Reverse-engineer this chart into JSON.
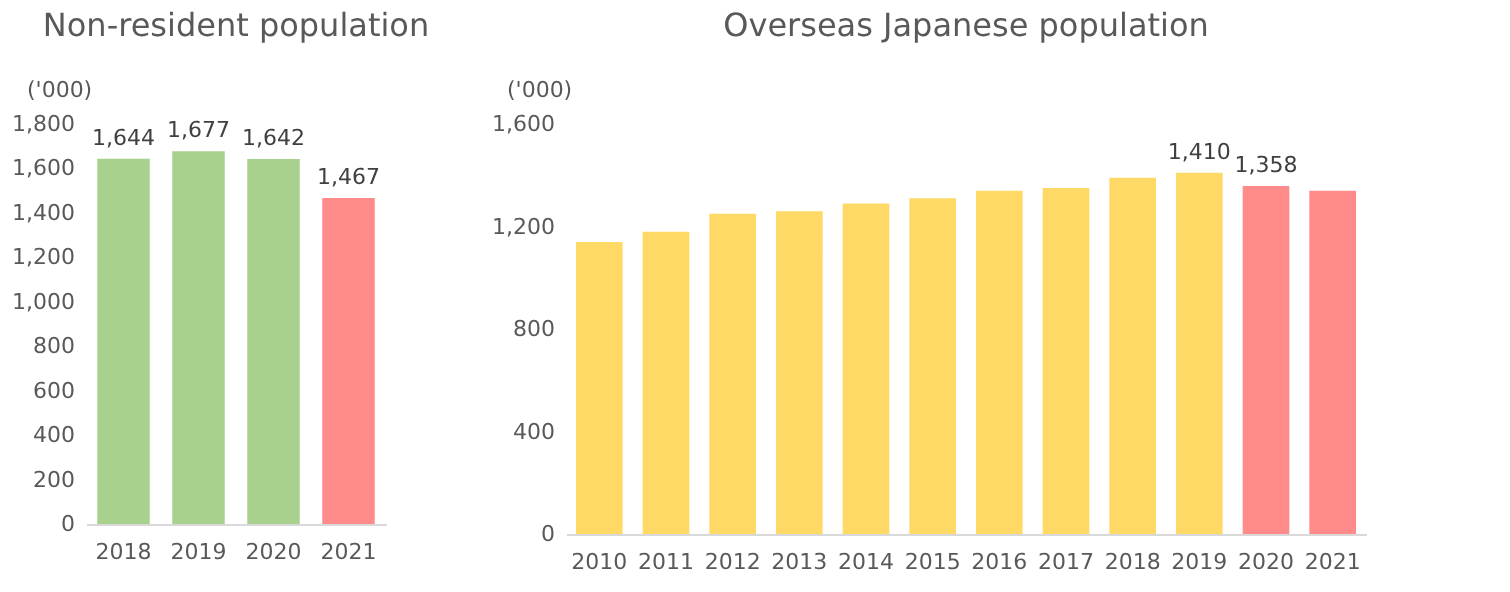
{
  "chart_data": [
    {
      "type": "bar",
      "title": "Non-resident population",
      "ylabel": "('000)",
      "categories": [
        "2018",
        "2019",
        "2020",
        "2021"
      ],
      "values": [
        1644,
        1677,
        1642,
        1467
      ],
      "colors": [
        "#a9d18e",
        "#a9d18e",
        "#a9d18e",
        "#ff8b8b"
      ],
      "value_labels": [
        "1,644",
        "1,677",
        "1,642",
        "1,467"
      ],
      "ylim": [
        0,
        1800
      ],
      "yticks": [
        0,
        200,
        400,
        600,
        800,
        {
          "value": 1000,
          "label": "1,000"
        },
        {
          "value": 1200,
          "label": "1,200"
        },
        {
          "value": 1400,
          "label": "1,400"
        },
        {
          "value": 1600,
          "label": "1,600"
        },
        {
          "value": 1800,
          "label": "1,800"
        }
      ],
      "grid": false
    },
    {
      "type": "bar",
      "title": "Overseas Japanese population",
      "ylabel": "('000)",
      "categories": [
        "2010",
        "2011",
        "2012",
        "2013",
        "2014",
        "2015",
        "2016",
        "2017",
        "2018",
        "2019",
        "2020",
        "2021"
      ],
      "values": [
        1140,
        1180,
        1250,
        1260,
        1290,
        1310,
        1340,
        1350,
        1390,
        1410,
        1358,
        1340
      ],
      "colors": [
        "#ffd966",
        "#ffd966",
        "#ffd966",
        "#ffd966",
        "#ffd966",
        "#ffd966",
        "#ffd966",
        "#ffd966",
        "#ffd966",
        "#ffd966",
        "#ff8b8b",
        "#ff8b8b"
      ],
      "value_labels": [
        null,
        null,
        null,
        null,
        null,
        null,
        null,
        null,
        null,
        "1,410",
        "1,358",
        null
      ],
      "ylim": [
        0,
        1600
      ],
      "yticks": [
        0,
        400,
        800,
        {
          "value": 1200,
          "label": "1,200"
        },
        {
          "value": 1600,
          "label": "1,600"
        }
      ],
      "grid": false
    }
  ]
}
